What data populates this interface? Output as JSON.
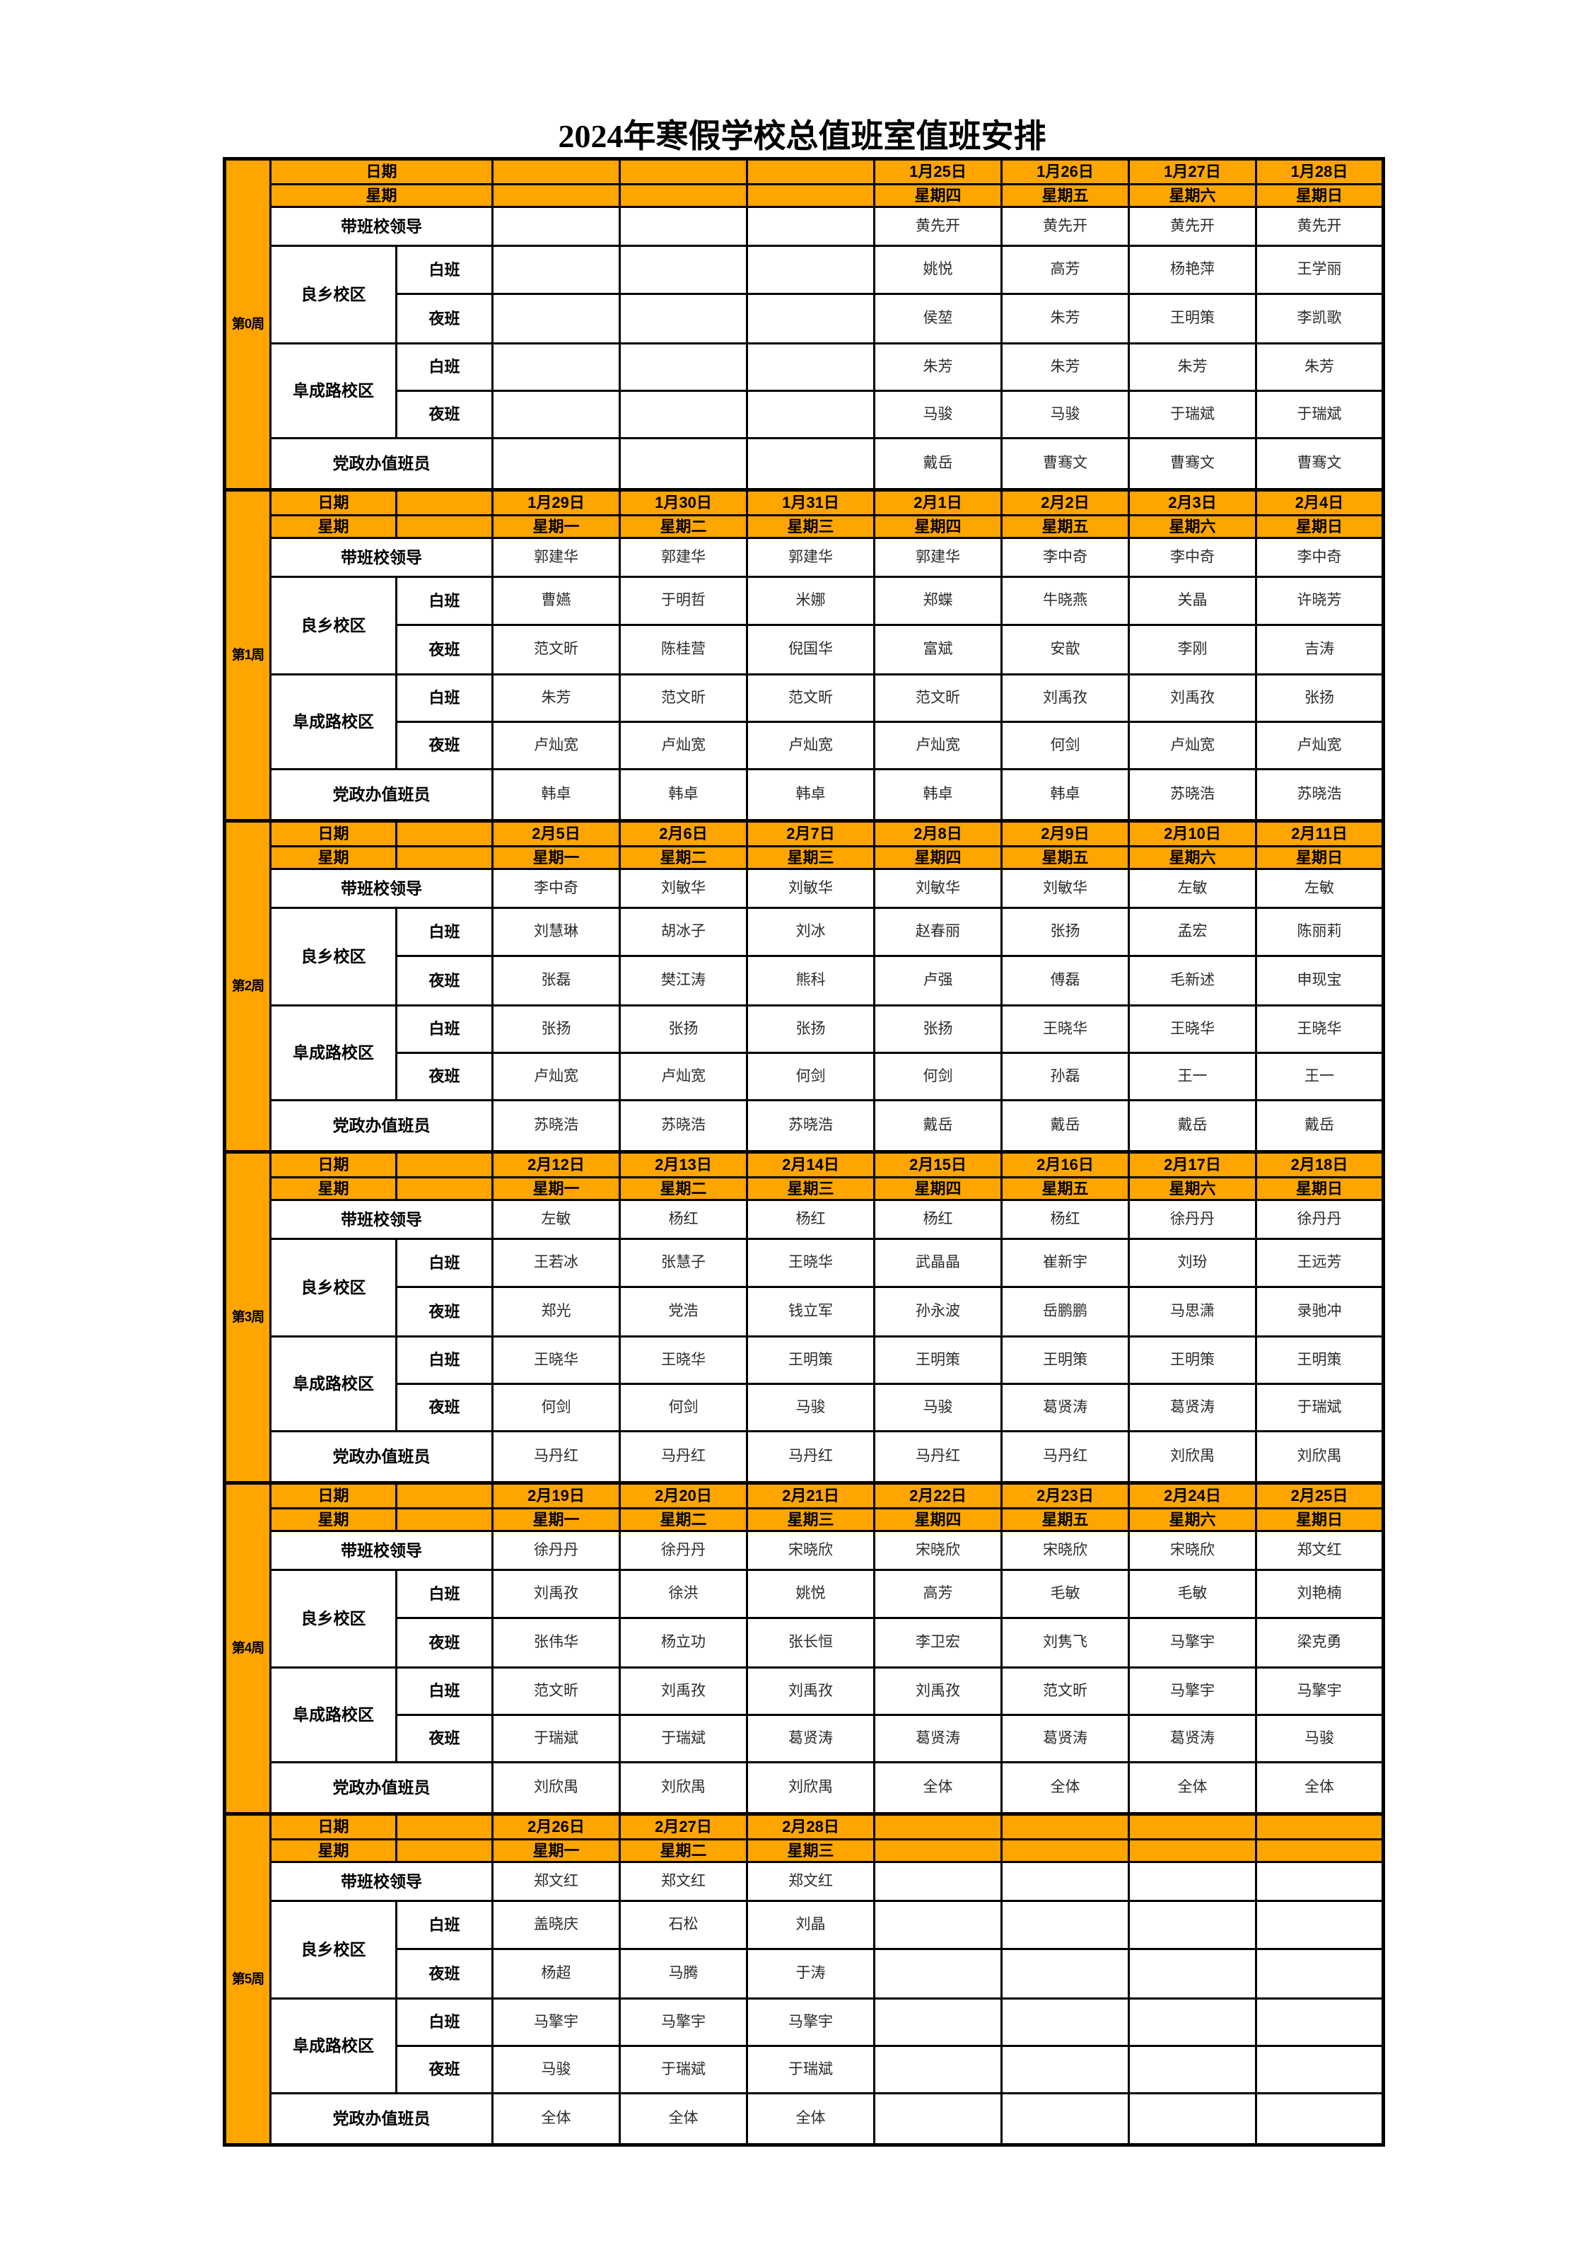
{
  "title": "2024年寒假学校总值班室值班安排",
  "row_labels": {
    "date": "日期",
    "weekday": "星期",
    "leader": "带班校领导",
    "campus_liangxiang": "良乡校区",
    "campus_fuchenglu": "阜成路校区",
    "day_shift": "白班",
    "night_shift": "夜班",
    "office": "党政办值班员"
  },
  "weeks": [
    {
      "week_label": "第0周",
      "dates": [
        "",
        "",
        "",
        "1月25日",
        "1月26日",
        "1月27日",
        "1月28日"
      ],
      "weekdays": [
        "",
        "",
        "",
        "星期四",
        "星期五",
        "星期六",
        "星期日"
      ],
      "leaders": [
        "",
        "",
        "",
        "黄先开",
        "黄先开",
        "黄先开",
        "黄先开"
      ],
      "lx_day": [
        "",
        "",
        "",
        "姚悦",
        "高芳",
        "杨艳萍",
        "王学丽"
      ],
      "lx_night": [
        "",
        "",
        "",
        "侯堃",
        "朱芳",
        "王明策",
        "李凯歌"
      ],
      "fcl_day": [
        "",
        "",
        "",
        "朱芳",
        "朱芳",
        "朱芳",
        "朱芳"
      ],
      "fcl_night": [
        "",
        "",
        "",
        "马骏",
        "马骏",
        "于瑞斌",
        "于瑞斌"
      ],
      "office": [
        "",
        "",
        "",
        "戴岳",
        "曹骞文",
        "曹骞文",
        "曹骞文"
      ]
    },
    {
      "week_label": "第1周",
      "dates": [
        "1月29日",
        "1月30日",
        "1月31日",
        "2月1日",
        "2月2日",
        "2月3日",
        "2月4日"
      ],
      "weekdays": [
        "星期一",
        "星期二",
        "星期三",
        "星期四",
        "星期五",
        "星期六",
        "星期日"
      ],
      "leaders": [
        "郭建华",
        "郭建华",
        "郭建华",
        "郭建华",
        "李中奇",
        "李中奇",
        "李中奇"
      ],
      "lx_day": [
        "曹嬿",
        "于明哲",
        "米娜",
        "郑蝶",
        "牛晓燕",
        "关晶",
        "许晓芳"
      ],
      "lx_night": [
        "范文昕",
        "陈桂营",
        "倪国华",
        "富斌",
        "安歆",
        "李刚",
        "吉涛"
      ],
      "fcl_day": [
        "朱芳",
        "范文昕",
        "范文昕",
        "范文昕",
        "刘禹孜",
        "刘禹孜",
        "张扬"
      ],
      "fcl_night": [
        "卢灿宽",
        "卢灿宽",
        "卢灿宽",
        "卢灿宽",
        "何剑",
        "卢灿宽",
        "卢灿宽"
      ],
      "office": [
        "韩卓",
        "韩卓",
        "韩卓",
        "韩卓",
        "韩卓",
        "苏晓浩",
        "苏晓浩"
      ]
    },
    {
      "week_label": "第2周",
      "dates": [
        "2月5日",
        "2月6日",
        "2月7日",
        "2月8日",
        "2月9日",
        "2月10日",
        "2月11日"
      ],
      "weekdays": [
        "星期一",
        "星期二",
        "星期三",
        "星期四",
        "星期五",
        "星期六",
        "星期日"
      ],
      "leaders": [
        "李中奇",
        "刘敏华",
        "刘敏华",
        "刘敏华",
        "刘敏华",
        "左敏",
        "左敏"
      ],
      "lx_day": [
        "刘慧琳",
        "胡冰子",
        "刘冰",
        "赵春丽",
        "张扬",
        "孟宏",
        "陈丽莉"
      ],
      "lx_night": [
        "张磊",
        "樊江涛",
        "熊科",
        "卢强",
        "傅磊",
        "毛新述",
        "申现宝"
      ],
      "fcl_day": [
        "张扬",
        "张扬",
        "张扬",
        "张扬",
        "王晓华",
        "王晓华",
        "王晓华"
      ],
      "fcl_night": [
        "卢灿宽",
        "卢灿宽",
        "何剑",
        "何剑",
        "孙磊",
        "王一",
        "王一"
      ],
      "office": [
        "苏晓浩",
        "苏晓浩",
        "苏晓浩",
        "戴岳",
        "戴岳",
        "戴岳",
        "戴岳"
      ]
    },
    {
      "week_label": "第3周",
      "dates": [
        "2月12日",
        "2月13日",
        "2月14日",
        "2月15日",
        "2月16日",
        "2月17日",
        "2月18日"
      ],
      "weekdays": [
        "星期一",
        "星期二",
        "星期三",
        "星期四",
        "星期五",
        "星期六",
        "星期日"
      ],
      "leaders": [
        "左敏",
        "杨红",
        "杨红",
        "杨红",
        "杨红",
        "徐丹丹",
        "徐丹丹"
      ],
      "lx_day": [
        "王若冰",
        "张慧子",
        "王晓华",
        "武晶晶",
        "崔新宇",
        "刘玢",
        "王远芳"
      ],
      "lx_night": [
        "郑光",
        "党浩",
        "钱立军",
        "孙永波",
        "岳鹏鹏",
        "马思潇",
        "录驰冲"
      ],
      "fcl_day": [
        "王晓华",
        "王晓华",
        "王明策",
        "王明策",
        "王明策",
        "王明策",
        "王明策"
      ],
      "fcl_night": [
        "何剑",
        "何剑",
        "马骏",
        "马骏",
        "葛贤涛",
        "葛贤涛",
        "于瑞斌"
      ],
      "office": [
        "马丹红",
        "马丹红",
        "马丹红",
        "马丹红",
        "马丹红",
        "刘欣禺",
        "刘欣禺"
      ]
    },
    {
      "week_label": "第4周",
      "dates": [
        "2月19日",
        "2月20日",
        "2月21日",
        "2月22日",
        "2月23日",
        "2月24日",
        "2月25日"
      ],
      "weekdays": [
        "星期一",
        "星期二",
        "星期三",
        "星期四",
        "星期五",
        "星期六",
        "星期日"
      ],
      "leaders": [
        "徐丹丹",
        "徐丹丹",
        "宋晓欣",
        "宋晓欣",
        "宋晓欣",
        "宋晓欣",
        "郑文红"
      ],
      "lx_day": [
        "刘禹孜",
        "徐洪",
        "姚悦",
        "高芳",
        "毛敏",
        "毛敏",
        "刘艳楠"
      ],
      "lx_night": [
        "张伟华",
        "杨立功",
        "张长恒",
        "李卫宏",
        "刘隽飞",
        "马擎宇",
        "梁克勇"
      ],
      "fcl_day": [
        "范文昕",
        "刘禹孜",
        "刘禹孜",
        "刘禹孜",
        "范文昕",
        "马擎宇",
        "马擎宇"
      ],
      "fcl_night": [
        "于瑞斌",
        "于瑞斌",
        "葛贤涛",
        "葛贤涛",
        "葛贤涛",
        "葛贤涛",
        "马骏"
      ],
      "office": [
        "刘欣禺",
        "刘欣禺",
        "刘欣禺",
        "全体",
        "全体",
        "全体",
        "全体"
      ]
    },
    {
      "week_label": "第5周",
      "dates": [
        "2月26日",
        "2月27日",
        "2月28日",
        "",
        "",
        "",
        ""
      ],
      "weekdays": [
        "星期一",
        "星期二",
        "星期三",
        "",
        "",
        "",
        ""
      ],
      "leaders": [
        "郑文红",
        "郑文红",
        "郑文红",
        "",
        "",
        "",
        ""
      ],
      "lx_day": [
        "盖晓庆",
        "石松",
        "刘晶",
        "",
        "",
        "",
        ""
      ],
      "lx_night": [
        "杨超",
        "马腾",
        "于涛",
        "",
        "",
        "",
        ""
      ],
      "fcl_day": [
        "马擎宇",
        "马擎宇",
        "马擎宇",
        "",
        "",
        "",
        ""
      ],
      "fcl_night": [
        "马骏",
        "于瑞斌",
        "于瑞斌",
        "",
        "",
        "",
        ""
      ],
      "office": [
        "全体",
        "全体",
        "全体",
        "",
        "",
        "",
        ""
      ]
    }
  ]
}
